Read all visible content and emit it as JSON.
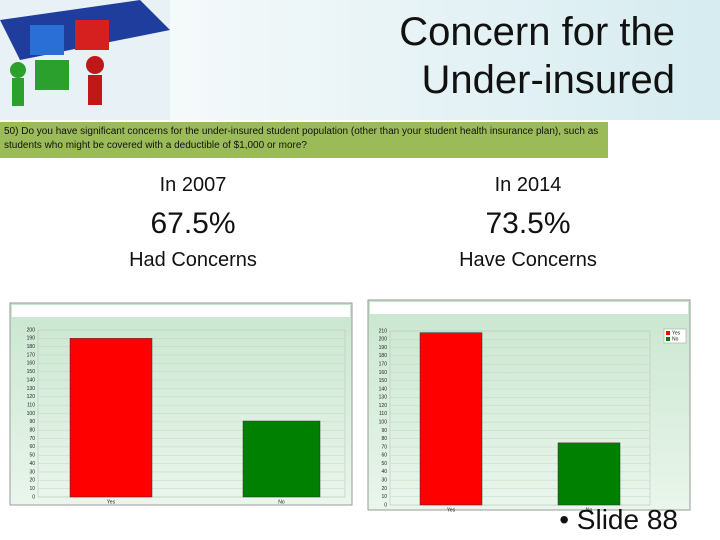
{
  "header": {
    "title": "Concern for the Under-insured"
  },
  "question": "50) Do you have significant concerns for the under-insured student population (other than your student health insurance plan), such as students who might be covered with a deductible of $1,000 or more?",
  "columns": [
    {
      "year": "In 2007",
      "percent": "67.5%",
      "label": "Had Concerns"
    },
    {
      "year": "In 2014",
      "percent": "73.5%",
      "label": "Have Concerns"
    }
  ],
  "chart_data": [
    {
      "type": "bar",
      "categories": [
        "Yes",
        "No"
      ],
      "values": [
        190,
        91
      ],
      "colors": [
        "#ff0000",
        "#008000"
      ],
      "ylim": [
        0,
        200
      ],
      "yticks": [
        0,
        10,
        20,
        30,
        40,
        50,
        60,
        70,
        80,
        90,
        100,
        110,
        120,
        130,
        140,
        150,
        160,
        170,
        180,
        190,
        200
      ],
      "grid": true,
      "legend": false
    },
    {
      "type": "bar",
      "categories": [
        "Yes",
        "No"
      ],
      "values": [
        208,
        75
      ],
      "colors": [
        "#ff0000",
        "#008000"
      ],
      "ylim": [
        0,
        210
      ],
      "yticks": [
        0,
        10,
        20,
        30,
        40,
        50,
        60,
        70,
        80,
        90,
        100,
        110,
        120,
        130,
        140,
        150,
        160,
        170,
        180,
        190,
        200,
        210
      ],
      "grid": true,
      "legend": true
    }
  ],
  "footer": "• Slide 88"
}
